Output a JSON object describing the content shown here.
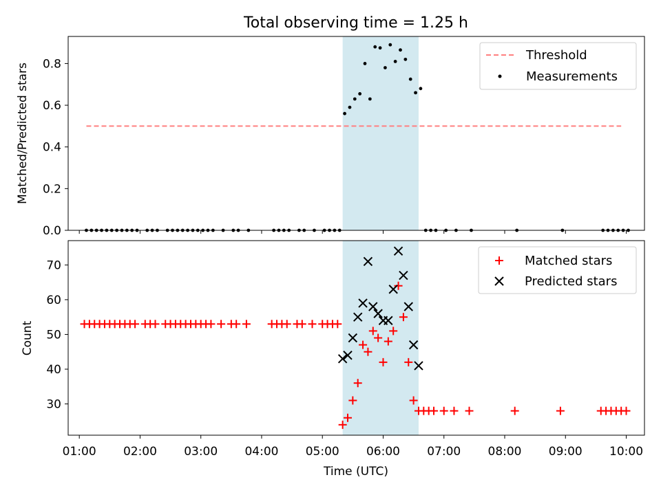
{
  "chart_data": [
    {
      "type": "scatter",
      "title": "Total observing time = 1.25 h",
      "xlabel": "",
      "ylabel": "Matched/Predicted stars",
      "xlim": [
        "00:49",
        "10:18"
      ],
      "ylim": [
        0,
        0.93
      ],
      "yticks": [
        "0.0",
        "0.2",
        "0.4",
        "0.6",
        "0.8"
      ],
      "ytick_values": [
        0,
        0.2,
        0.4,
        0.6,
        0.8
      ],
      "grid": false,
      "legend": "top-right",
      "shaded_region": {
        "x_start": "05:20",
        "x_end": "06:35",
        "color": "#d3e9f0"
      },
      "series": [
        {
          "name": "Threshold",
          "kind": "dashed-line",
          "color": "#ff7f7f",
          "x": [
            "01:07",
            "09:55"
          ],
          "y": [
            0.5,
            0.5
          ]
        },
        {
          "name": "Measurements",
          "kind": "dots",
          "color": "#000000",
          "x": [
            "01:07",
            "01:12",
            "01:17",
            "01:22",
            "01:27",
            "01:32",
            "01:37",
            "01:42",
            "01:47",
            "01:52",
            "01:57",
            "02:07",
            "02:12",
            "02:17",
            "02:27",
            "02:32",
            "02:37",
            "02:42",
            "02:47",
            "02:52",
            "02:57",
            "03:02",
            "03:07",
            "03:12",
            "03:22",
            "03:32",
            "03:37",
            "03:47",
            "04:12",
            "04:17",
            "04:22",
            "04:27",
            "04:37",
            "04:42",
            "04:52",
            "05:02",
            "05:07",
            "05:12",
            "05:17",
            "05:22",
            "05:27",
            "05:32",
            "05:37",
            "05:42",
            "05:47",
            "05:52",
            "05:57",
            "06:02",
            "06:07",
            "06:12",
            "06:17",
            "06:22",
            "06:27",
            "06:32",
            "06:37",
            "06:42",
            "06:47",
            "06:52",
            "07:02",
            "07:12",
            "07:27",
            "08:12",
            "08:57",
            "09:37",
            "09:42",
            "09:47",
            "09:52",
            "09:57",
            "10:02"
          ],
          "y": [
            0,
            0,
            0,
            0,
            0,
            0,
            0,
            0,
            0,
            0,
            0,
            0,
            0,
            0,
            0,
            0,
            0,
            0,
            0,
            0,
            0,
            0,
            0,
            0,
            0,
            0,
            0,
            0,
            0,
            0,
            0,
            0,
            0,
            0,
            0,
            0,
            0,
            0,
            0,
            0.56,
            0.59,
            0.63,
            0.655,
            0.8,
            0.63,
            0.88,
            0.875,
            0.78,
            0.89,
            0.81,
            0.865,
            0.82,
            0.725,
            0.66,
            0.68,
            0,
            0,
            0,
            0,
            0,
            0,
            0,
            0,
            0,
            0,
            0,
            0,
            0,
            0
          ]
        }
      ]
    },
    {
      "type": "scatter",
      "title": "",
      "xlabel": "Time (UTC)",
      "ylabel": "Count",
      "xlim": [
        "00:49",
        "10:18"
      ],
      "ylim": [
        21,
        77
      ],
      "yticks": [
        "30",
        "40",
        "50",
        "60",
        "70"
      ],
      "ytick_values": [
        30,
        40,
        50,
        60,
        70
      ],
      "xticks": [
        "01:00",
        "02:00",
        "03:00",
        "04:00",
        "05:00",
        "06:00",
        "07:00",
        "08:00",
        "09:00",
        "10:00"
      ],
      "grid": false,
      "legend": "top-right",
      "shaded_region": {
        "x_start": "05:20",
        "x_end": "06:35",
        "color": "#d3e9f0"
      },
      "series": [
        {
          "name": "Matched stars",
          "kind": "plus",
          "color": "#ff0000",
          "x": [
            "01:05",
            "01:10",
            "01:15",
            "01:20",
            "01:25",
            "01:30",
            "01:35",
            "01:40",
            "01:45",
            "01:50",
            "01:55",
            "02:05",
            "02:10",
            "02:15",
            "02:25",
            "02:30",
            "02:35",
            "02:40",
            "02:45",
            "02:50",
            "02:55",
            "03:00",
            "03:05",
            "03:10",
            "03:20",
            "03:30",
            "03:35",
            "03:45",
            "04:10",
            "04:15",
            "04:20",
            "04:25",
            "04:35",
            "04:40",
            "04:50",
            "05:00",
            "05:05",
            "05:10",
            "05:15",
            "05:20",
            "05:25",
            "05:30",
            "05:35",
            "05:40",
            "05:45",
            "05:50",
            "05:55",
            "06:00",
            "06:05",
            "06:10",
            "06:15",
            "06:20",
            "06:25",
            "06:30",
            "06:35",
            "06:40",
            "06:45",
            "06:50",
            "07:00",
            "07:10",
            "07:25",
            "08:10",
            "08:55",
            "09:35",
            "09:40",
            "09:45",
            "09:50",
            "09:55",
            "10:00"
          ],
          "y": [
            53,
            53,
            53,
            53,
            53,
            53,
            53,
            53,
            53,
            53,
            53,
            53,
            53,
            53,
            53,
            53,
            53,
            53,
            53,
            53,
            53,
            53,
            53,
            53,
            53,
            53,
            53,
            53,
            53,
            53,
            53,
            53,
            53,
            53,
            53,
            53,
            53,
            53,
            53,
            24,
            26,
            31,
            36,
            47,
            45,
            51,
            49,
            42,
            48,
            51,
            64,
            55,
            42,
            31,
            28,
            28,
            28,
            28,
            28,
            28,
            28,
            28,
            28,
            28,
            28,
            28,
            28,
            28,
            28
          ]
        },
        {
          "name": "Predicted stars",
          "kind": "x",
          "color": "#000000",
          "x": [
            "05:20",
            "05:25",
            "05:30",
            "05:35",
            "05:40",
            "05:45",
            "05:50",
            "05:55",
            "06:00",
            "06:05",
            "06:10",
            "06:15",
            "06:20",
            "06:25",
            "06:30",
            "06:35"
          ],
          "y": [
            43,
            44,
            49,
            55,
            59,
            71,
            58,
            56,
            54,
            54,
            63,
            74,
            67,
            58,
            47,
            41
          ]
        }
      ]
    }
  ]
}
